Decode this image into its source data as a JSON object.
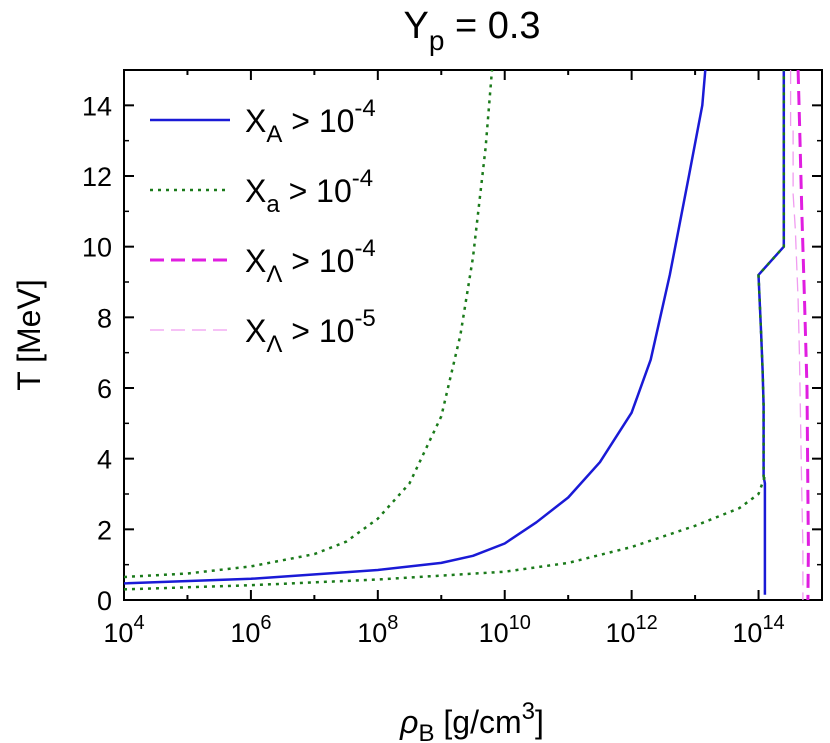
{
  "chart_data": {
    "type": "line",
    "title": {
      "main": "Y",
      "sub": "p",
      "rest": " = 0.3"
    },
    "xlabel": {
      "sym": "ρ",
      "sub": "B",
      "rest": " [g/cm",
      "sup": "3",
      "end": "]"
    },
    "ylabel": "T [MeV]",
    "x_scale": "log",
    "xlim": [
      10000,
      1000000000000000.0
    ],
    "ylim": [
      0,
      15
    ],
    "xticks": [
      {
        "value": 10000,
        "base": "10",
        "exp": "4"
      },
      {
        "value": 1000000,
        "base": "10",
        "exp": "6"
      },
      {
        "value": 100000000,
        "base": "10",
        "exp": "8"
      },
      {
        "value": 10000000000,
        "base": "10",
        "exp": "10"
      },
      {
        "value": 1000000000000,
        "base": "10",
        "exp": "12"
      },
      {
        "value": 100000000000000,
        "base": "10",
        "exp": "14"
      }
    ],
    "yticks": [
      0,
      2,
      4,
      6,
      8,
      10,
      12,
      14
    ],
    "legend_position": "top-left",
    "series": [
      {
        "name": {
          "sym": "X",
          "sub": "A",
          "rest": " > 10",
          "sup": "-4"
        },
        "color": "#1a1ad6",
        "style": "solid",
        "segments": [
          [
            [
              10000,
              0.47
            ],
            [
              1000000,
              0.6
            ],
            [
              100000000,
              0.85
            ],
            [
              1000000000,
              1.05
            ],
            [
              3160000000,
              1.25
            ],
            [
              10000000000,
              1.6
            ],
            [
              31600000000,
              2.2
            ],
            [
              100000000000,
              2.9
            ],
            [
              316000000000,
              3.9
            ],
            [
              1000000000000,
              5.3
            ],
            [
              2000000000000,
              6.8
            ],
            [
              4000000000000,
              9.2
            ],
            [
              8000000000000,
              12.0
            ],
            [
              13000000000000,
              14.0
            ],
            [
              14500000000000,
              15.0
            ]
          ],
          [
            [
              126000000000000,
              0.15
            ],
            [
              126000000000000,
              3.3
            ],
            [
              120000000000000,
              3.5
            ],
            [
              120000000000000,
              5.5
            ],
            [
              116000000000000,
              6.5
            ],
            [
              110000000000000,
              7.5
            ],
            [
              100000000000000,
              9.2
            ],
            [
              250000000000000,
              10.0
            ],
            [
              250000000000000,
              15.0
            ]
          ]
        ]
      },
      {
        "name": {
          "sym": "X",
          "sub": "a",
          "rest": " > 10",
          "sup": "-4"
        },
        "color": "#1a7a1a",
        "style": "dotted",
        "segments": [
          [
            [
              10000,
              0.65
            ],
            [
              100000,
              0.75
            ],
            [
              1000000,
              0.95
            ],
            [
              10000000,
              1.3
            ],
            [
              31600000,
              1.65
            ],
            [
              100000000,
              2.3
            ],
            [
              316000000,
              3.3
            ],
            [
              1000000000,
              5.2
            ],
            [
              2000000000,
              7.5
            ],
            [
              3160000000,
              9.7
            ],
            [
              5000000000,
              12.8
            ],
            [
              6300000000,
              15.0
            ]
          ],
          [
            [
              10000,
              0.3
            ],
            [
              1000000,
              0.42
            ],
            [
              100000000,
              0.58
            ],
            [
              10000000000,
              0.8
            ],
            [
              100000000000,
              1.05
            ],
            [
              1000000000000,
              1.5
            ],
            [
              10000000000000,
              2.1
            ],
            [
              50000000000000,
              2.6
            ],
            [
              100000000000000,
              3.0
            ],
            [
              126000000000000,
              3.5
            ]
          ],
          [
            [
              126000000000000,
              3.5
            ],
            [
              120000000000000,
              3.5
            ],
            [
              120000000000000,
              5.5
            ],
            [
              116000000000000,
              6.5
            ],
            [
              110000000000000,
              7.5
            ],
            [
              100000000000000,
              9.2
            ],
            [
              250000000000000,
              10.0
            ],
            [
              250000000000000,
              15.0
            ]
          ]
        ]
      },
      {
        "name": {
          "sym": "X",
          "sub": "Λ",
          "rest": " > 10",
          "sup": "-4"
        },
        "color": "#e01ee0",
        "style": "dashed",
        "segments": [
          [
            [
              420000000000000,
              15.0
            ],
            [
              450000000000000,
              13.0
            ],
            [
              480000000000000,
              11.0
            ],
            [
              530000000000000,
              8.5
            ],
            [
              580000000000000,
              6.0
            ],
            [
              600000000000000,
              3.0
            ],
            [
              610000000000000,
              1.5
            ],
            [
              600000000000000,
              0.0
            ]
          ]
        ]
      },
      {
        "name": {
          "sym": "X",
          "sub": "Λ",
          "rest": " > 10",
          "sup": "-5"
        },
        "color": "#f09cf0",
        "style": "dashed-thin",
        "segments": [
          [
            [
              320000000000000,
              15.0
            ],
            [
              320000000000000,
              13.3
            ],
            [
              350000000000000,
              13.3
            ],
            [
              350000000000000,
              11.5
            ],
            [
              380000000000000,
              10.5
            ],
            [
              400000000000000,
              9.5
            ],
            [
              420000000000000,
              8.5
            ],
            [
              440000000000000,
              7.0
            ],
            [
              460000000000000,
              5.0
            ],
            [
              480000000000000,
              3.0
            ],
            [
              500000000000000,
              1.5
            ],
            [
              500000000000000,
              0.0
            ]
          ]
        ]
      }
    ]
  }
}
